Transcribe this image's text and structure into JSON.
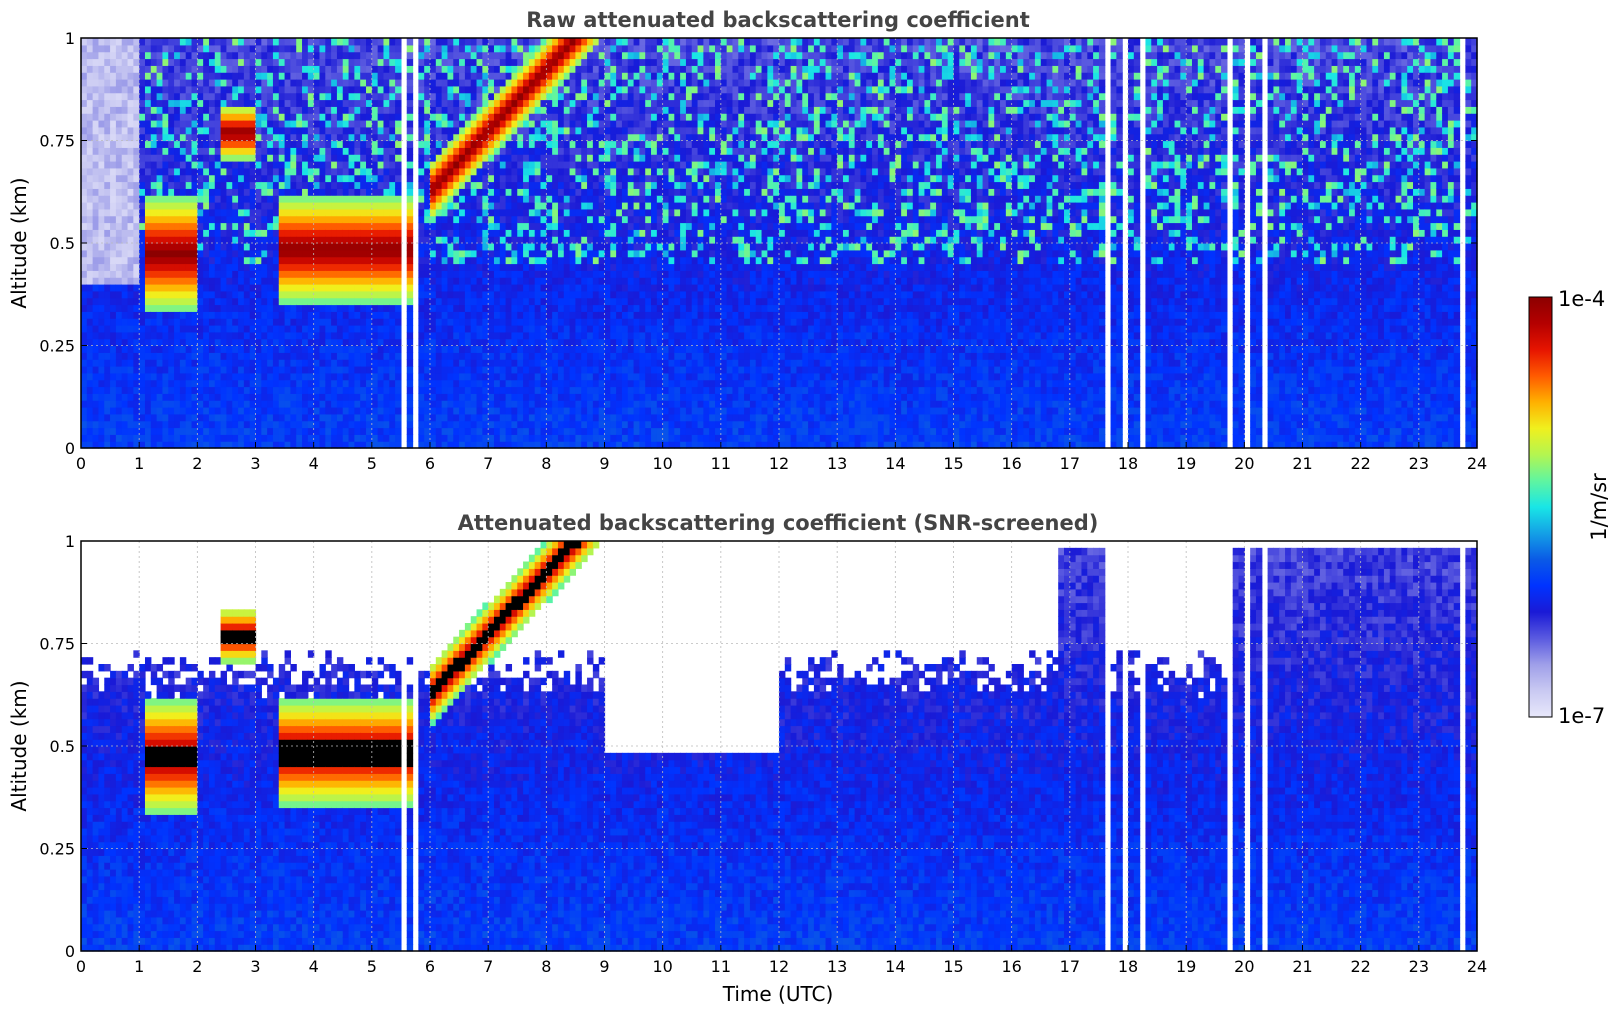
{
  "chart_data": [
    {
      "type": "heatmap",
      "title": "Raw attenuated backscattering coefficient",
      "xlabel": "",
      "ylabel": "Altitude (km)",
      "xlim": [
        0,
        24
      ],
      "ylim": [
        0,
        1
      ],
      "x_ticks": [
        "0",
        "1",
        "2",
        "3",
        "4",
        "5",
        "6",
        "7",
        "8",
        "9",
        "10",
        "11",
        "12",
        "13",
        "14",
        "15",
        "16",
        "17",
        "18",
        "19",
        "20",
        "21",
        "22",
        "23",
        "24"
      ],
      "y_ticks": [
        "0",
        "0.25",
        "0.5",
        "0.75",
        "1"
      ],
      "grid": true,
      "layer_features": [
        {
          "description": "aerosol/cloud layer",
          "time_utc": [
            1.1,
            2.0
          ],
          "altitude_km": [
            0.33,
            0.62
          ]
        },
        {
          "description": "aerosol/cloud layer",
          "time_utc": [
            2.4,
            3.0
          ],
          "altitude_km": [
            0.7,
            0.84
          ]
        },
        {
          "description": "aerosol/cloud layer",
          "time_utc": [
            3.4,
            5.8
          ],
          "altitude_km": [
            0.35,
            0.62
          ]
        },
        {
          "description": "rising layer",
          "time_utc": [
            6.0,
            9.0
          ],
          "altitude_km": [
            0.55,
            1.0
          ]
        }
      ],
      "data_gaps_utc": [
        5.55,
        5.75,
        17.65,
        17.95,
        18.25,
        19.75,
        20.05,
        20.35,
        23.75
      ]
    },
    {
      "type": "heatmap",
      "title": "Attenuated backscattering coefficient (SNR-screened)",
      "xlabel": "Time (UTC)",
      "ylabel": "Altitude (km)",
      "xlim": [
        0,
        24
      ],
      "ylim": [
        0,
        1
      ],
      "x_ticks": [
        "0",
        "1",
        "2",
        "3",
        "4",
        "5",
        "6",
        "7",
        "8",
        "9",
        "10",
        "11",
        "12",
        "13",
        "14",
        "15",
        "16",
        "17",
        "18",
        "19",
        "20",
        "21",
        "22",
        "23",
        "24"
      ],
      "y_ticks": [
        "0",
        "0.25",
        "0.5",
        "0.75",
        "1"
      ],
      "grid": true
    }
  ],
  "colorbar": {
    "max_label": "1e-4",
    "min_label": "1e-7",
    "unit": "1/m/sr",
    "colors": [
      "#e8e8fb",
      "#c9c9f2",
      "#9f9fe9",
      "#5a5ae0",
      "#1a1ad6",
      "#0033ff",
      "#0a5ae6",
      "#14a0e6",
      "#19e6e6",
      "#60f5a0",
      "#b4f550",
      "#f0f01e",
      "#ffb000",
      "#ff5a00",
      "#e61400",
      "#b40000",
      "#8c0000"
    ]
  }
}
